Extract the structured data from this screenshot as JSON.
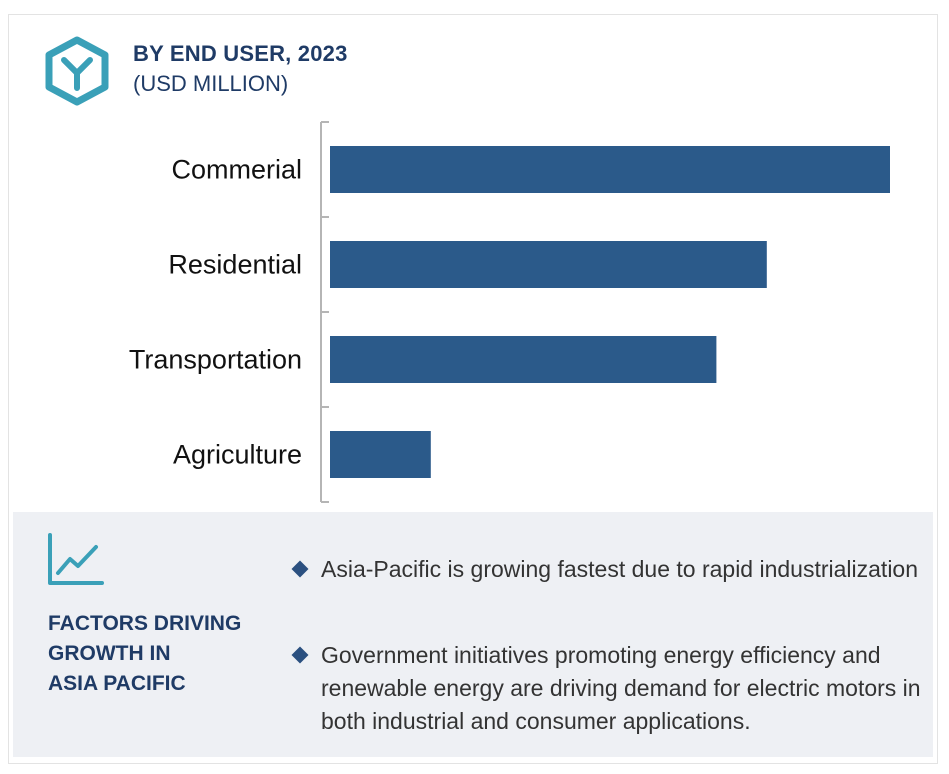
{
  "header": {
    "title": "BY END USER, 2023",
    "subtitle": "(USD MILLION)"
  },
  "colors": {
    "bar": "#2b5a8a",
    "accent_teal": "#3aa0b8",
    "heading": "#1f3b66",
    "panel_bg": "#eef0f4"
  },
  "icons": {
    "logo": "hexagon-y-logo-icon",
    "trend": "line-chart-trend-icon",
    "bullet": "diamond-bullet-icon"
  },
  "chart_data": {
    "type": "bar",
    "orientation": "horizontal",
    "categories": [
      "Commerial",
      "Residential",
      "Transportation",
      "Agriculture"
    ],
    "values": [
      100,
      78,
      69,
      18
    ],
    "xlim": [
      0,
      100
    ],
    "grid": false,
    "legend": "none"
  },
  "factors": {
    "title_lines": [
      "FACTORS DRIVING",
      "GROWTH IN",
      "ASIA PACIFIC"
    ],
    "bullets": [
      "Asia-Pacific is growing fastest due to rapid industrialization",
      "Government initiatives promoting energy efficiency and renewable energy are driving demand for electric motors in both industrial and consumer applications."
    ]
  }
}
